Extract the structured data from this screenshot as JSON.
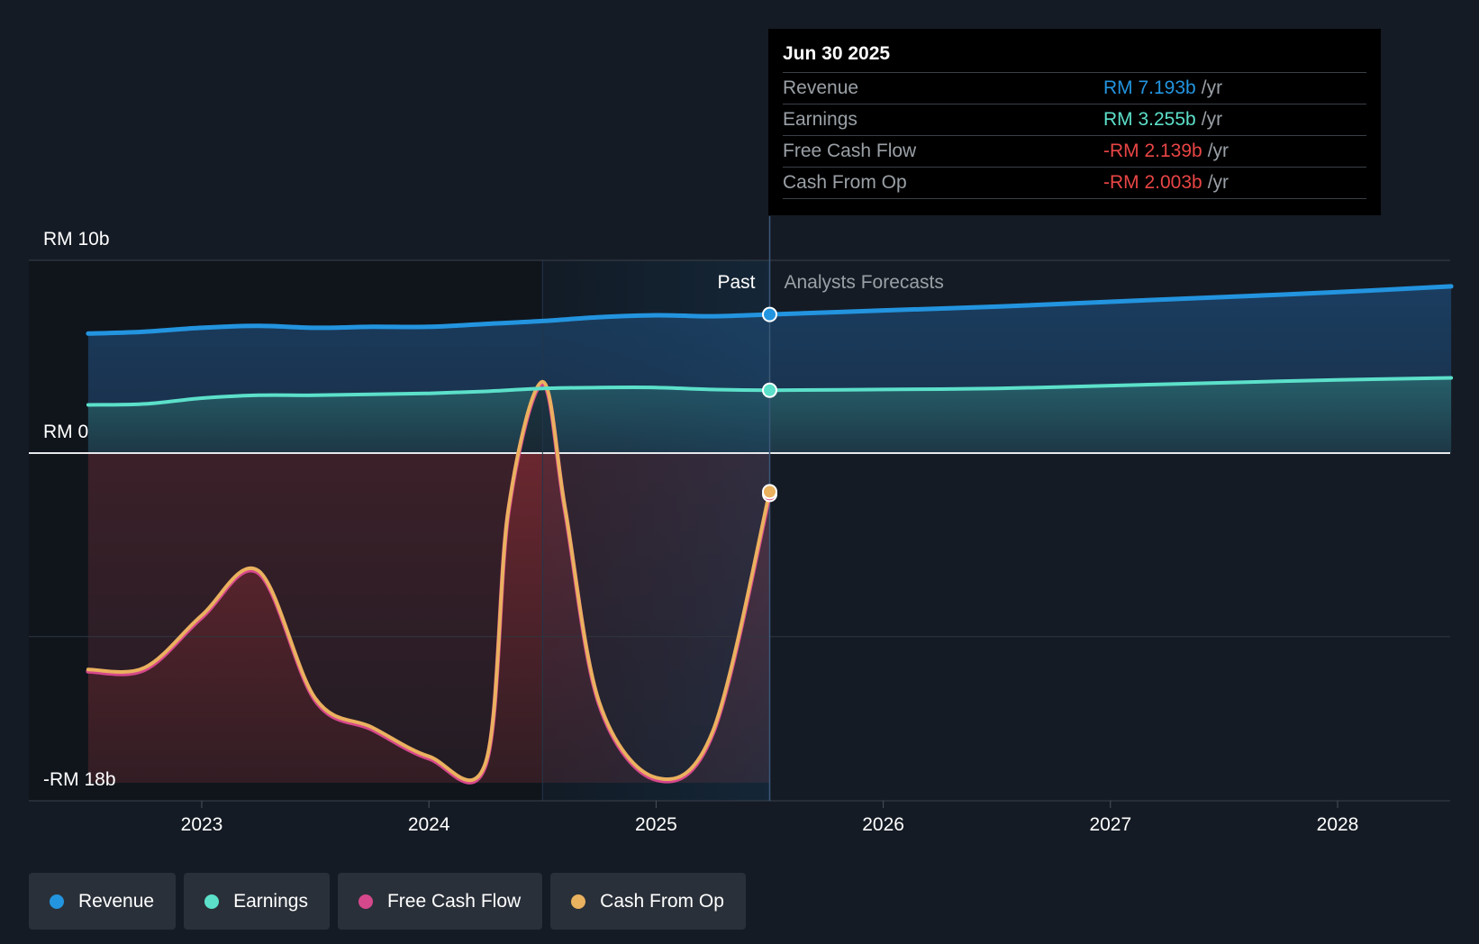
{
  "tooltip": {
    "date": "Jun 30 2025",
    "rows": [
      {
        "label": "Revenue",
        "value": "RM 7.193b",
        "unit": "/yr",
        "color": "#2394df"
      },
      {
        "label": "Earnings",
        "value": "RM 3.255b",
        "unit": "/yr",
        "color": "#5ce0ca"
      },
      {
        "label": "Free Cash Flow",
        "value": "-RM 2.139b",
        "unit": "/yr",
        "color": "#e84545"
      },
      {
        "label": "Cash From Op",
        "value": "-RM 2.003b",
        "unit": "/yr",
        "color": "#e84545"
      }
    ]
  },
  "legend": [
    {
      "label": "Revenue",
      "color": "#2394df"
    },
    {
      "label": "Earnings",
      "color": "#5ce0ca"
    },
    {
      "label": "Free Cash Flow",
      "color": "#d6488c"
    },
    {
      "label": "Cash From Op",
      "color": "#eab15f"
    }
  ],
  "chart_data": {
    "type": "line",
    "title": "",
    "y_tick_labels": [
      "RM 10b",
      "RM 0",
      "-RM 18b"
    ],
    "y_ticks": [
      10,
      0,
      -18
    ],
    "ylim": [
      -18,
      10
    ],
    "xlim": [
      2022.25,
      2028.5
    ],
    "x_ticks": [
      2023,
      2024,
      2025,
      2026,
      2027,
      2028
    ],
    "x_tick_labels": [
      "2023",
      "2024",
      "2025",
      "2026",
      "2027",
      "2028"
    ],
    "past_label": "Past",
    "forecast_label": "Analysts Forecasts",
    "past_end": 2025.5,
    "highlight_start": 2024.5,
    "series": [
      {
        "name": "Revenue",
        "color": "#2394df",
        "x": [
          2022.5,
          2022.75,
          2023.0,
          2023.25,
          2023.5,
          2023.75,
          2024.0,
          2024.25,
          2024.5,
          2024.75,
          2025.0,
          2025.25,
          2025.5,
          2026.0,
          2026.5,
          2027.0,
          2027.5,
          2028.0,
          2028.5
        ],
        "values": [
          6.2,
          6.3,
          6.5,
          6.6,
          6.5,
          6.55,
          6.55,
          6.7,
          6.85,
          7.05,
          7.15,
          7.1,
          7.19,
          7.4,
          7.6,
          7.85,
          8.1,
          8.35,
          8.65
        ]
      },
      {
        "name": "Earnings",
        "color": "#5ce0ca",
        "x": [
          2022.5,
          2022.75,
          2023.0,
          2023.25,
          2023.5,
          2023.75,
          2024.0,
          2024.25,
          2024.5,
          2024.75,
          2025.0,
          2025.25,
          2025.5,
          2026.0,
          2026.5,
          2027.0,
          2027.5,
          2028.0,
          2028.5
        ],
        "values": [
          2.5,
          2.55,
          2.85,
          3.0,
          3.0,
          3.05,
          3.1,
          3.2,
          3.35,
          3.4,
          3.4,
          3.3,
          3.26,
          3.3,
          3.35,
          3.5,
          3.65,
          3.8,
          3.9
        ]
      },
      {
        "name": "Free Cash Flow",
        "color": "#d6488c",
        "x": [
          2022.5,
          2022.75,
          2023.0,
          2023.25,
          2023.5,
          2023.75,
          2024.0,
          2024.25,
          2024.35,
          2024.5,
          2024.6,
          2024.75,
          2025.0,
          2025.25,
          2025.5
        ],
        "values": [
          -11.3,
          -11.2,
          -8.5,
          -6.2,
          -12.8,
          -14.3,
          -15.8,
          -16.1,
          -3.0,
          3.6,
          -3.0,
          -13.0,
          -16.9,
          -14.5,
          -2.14
        ]
      },
      {
        "name": "Cash From Op",
        "color": "#eab15f",
        "x": [
          2022.5,
          2022.75,
          2023.0,
          2023.25,
          2023.5,
          2023.75,
          2024.0,
          2024.25,
          2024.35,
          2024.5,
          2024.6,
          2024.75,
          2025.0,
          2025.25,
          2025.5
        ],
        "values": [
          -11.2,
          -11.1,
          -8.4,
          -6.1,
          -12.7,
          -14.2,
          -15.7,
          -16.0,
          -2.9,
          3.7,
          -2.9,
          -12.9,
          -16.8,
          -14.4,
          -2.0
        ]
      }
    ]
  }
}
